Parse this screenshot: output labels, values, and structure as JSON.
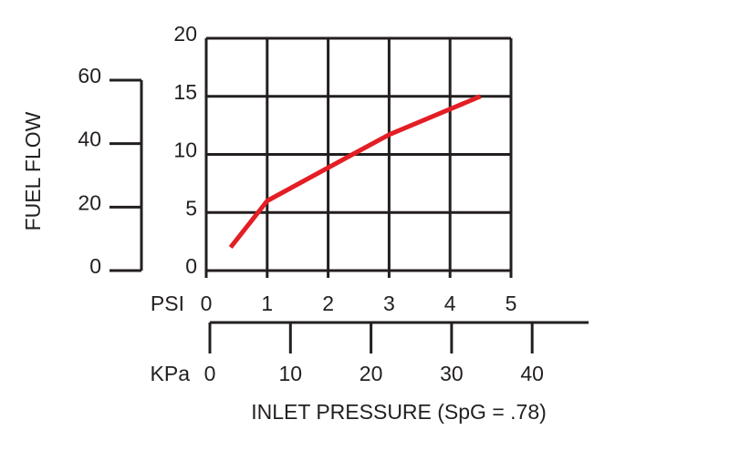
{
  "chart_data": {
    "type": "line",
    "x_unit": "PSI",
    "x2_unit": "KPa",
    "xlabel": "INLET PRESSURE (SpG = .78)",
    "ylabel": "FUEL FLOW",
    "x": [
      0.4,
      1,
      2.4,
      3,
      4.5
    ],
    "series": [
      {
        "color": "#e31e24",
        "values": [
          2,
          6,
          10,
          11.7,
          15
        ]
      }
    ],
    "xlim": [
      0,
      5
    ],
    "xticks": [
      0,
      1,
      2,
      3,
      4,
      5
    ],
    "ylim": [
      0,
      20
    ],
    "yticks": [
      0,
      5,
      10,
      15,
      20
    ],
    "x2lim": [
      0,
      47
    ],
    "x2ticks": [
      0,
      10,
      20,
      30,
      40
    ],
    "y2lim": [
      0,
      60
    ],
    "y2ticks": [
      0,
      20,
      40,
      60
    ],
    "grid": true
  }
}
